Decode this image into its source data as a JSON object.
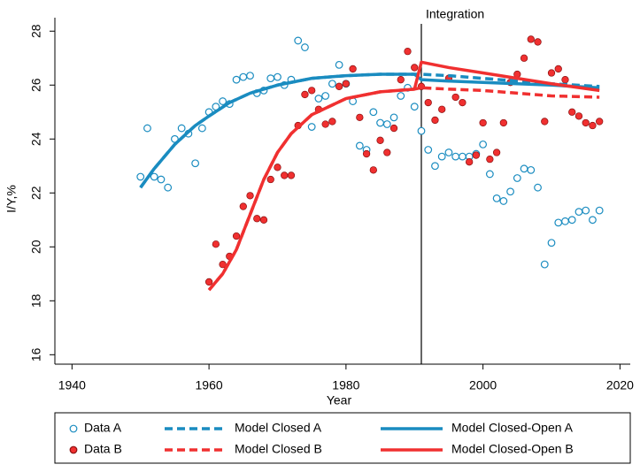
{
  "chart_data": {
    "type": "scatter-line",
    "xlabel": "Year",
    "ylabel": "I/Y,%",
    "xlim": [
      1937.5,
      2021.5
    ],
    "ylim": [
      15.65,
      28.5
    ],
    "xticks": [
      1940,
      1960,
      1980,
      2000,
      2020
    ],
    "yticks": [
      16,
      18,
      20,
      22,
      24,
      26,
      28
    ],
    "annotation": {
      "text": "Integration",
      "x": 1991
    },
    "series": [
      {
        "name": "Data A",
        "color": "#1a8cc0",
        "style": "hollow-circle",
        "x": [
          1950,
          1951,
          1952,
          1953,
          1954,
          1955,
          1956,
          1957,
          1958,
          1959,
          1960,
          1961,
          1962,
          1963,
          1964,
          1965,
          1966,
          1967,
          1968,
          1969,
          1970,
          1971,
          1972,
          1973,
          1974,
          1975,
          1976,
          1977,
          1978,
          1979,
          1980,
          1981,
          1982,
          1983,
          1984,
          1985,
          1986,
          1987,
          1988,
          1989,
          1990,
          1991,
          1992,
          1993,
          1994,
          1995,
          1996,
          1997,
          1998,
          1999,
          2000,
          2001,
          2002,
          2003,
          2004,
          2005,
          2006,
          2007,
          2008,
          2009,
          2010,
          2011,
          2012,
          2013,
          2014,
          2015,
          2016,
          2017
        ],
        "values": [
          22.6,
          24.4,
          22.6,
          22.5,
          22.2,
          24.0,
          24.4,
          24.2,
          23.1,
          24.4,
          25.0,
          25.2,
          25.4,
          25.3,
          26.2,
          26.3,
          26.35,
          25.7,
          25.8,
          26.25,
          26.3,
          26.0,
          26.2,
          27.65,
          27.4,
          24.45,
          25.5,
          25.6,
          26.05,
          26.75,
          26.05,
          25.4,
          23.75,
          23.6,
          25.0,
          24.6,
          24.55,
          24.8,
          25.6,
          25.9,
          25.2,
          24.3,
          23.6,
          23.0,
          23.35,
          23.5,
          23.35,
          23.35,
          23.35,
          23.45,
          23.8,
          22.7,
          21.8,
          21.7,
          22.05,
          22.55,
          22.9,
          22.85,
          22.2,
          19.35,
          20.15,
          20.9,
          20.95,
          21.0,
          21.3,
          21.35,
          21.0,
          21.35
        ]
      },
      {
        "name": "Data B",
        "color": "#f03030",
        "style": "filled-circle",
        "x": [
          1960,
          1961,
          1962,
          1963,
          1964,
          1965,
          1966,
          1967,
          1968,
          1969,
          1970,
          1971,
          1972,
          1973,
          1974,
          1975,
          1976,
          1977,
          1978,
          1979,
          1980,
          1981,
          1982,
          1983,
          1984,
          1985,
          1986,
          1987,
          1988,
          1989,
          1990,
          1991,
          1992,
          1993,
          1994,
          1995,
          1996,
          1997,
          1998,
          1999,
          2000,
          2001,
          2002,
          2003,
          2004,
          2005,
          2006,
          2007,
          2008,
          2009,
          2010,
          2011,
          2012,
          2013,
          2014,
          2015,
          2016,
          2017
        ],
        "values": [
          18.7,
          20.1,
          19.35,
          19.65,
          20.4,
          21.5,
          21.9,
          21.05,
          21.0,
          22.5,
          22.95,
          22.65,
          22.65,
          24.5,
          25.65,
          25.8,
          25.1,
          24.55,
          24.65,
          25.95,
          26.05,
          26.6,
          24.8,
          23.45,
          22.85,
          23.95,
          23.5,
          24.4,
          26.2,
          27.25,
          26.65,
          25.95,
          25.35,
          24.7,
          25.1,
          26.25,
          25.55,
          25.35,
          23.15,
          23.4,
          24.6,
          23.25,
          23.5,
          24.6,
          26.1,
          26.4,
          27.0,
          27.7,
          27.6,
          24.65,
          26.45,
          26.6,
          26.2,
          25.0,
          24.85,
          24.6,
          24.5,
          24.65
        ]
      },
      {
        "name": "Model Closed A",
        "color": "#1a8cc0",
        "style": "dashed",
        "x": [
          1950,
          1952,
          1955,
          1958,
          1960,
          1963,
          1966,
          1970,
          1975,
          1980,
          1985,
          1990,
          1991,
          1995,
          2000,
          2005,
          2010,
          2017
        ],
        "values": [
          22.2,
          22.9,
          23.8,
          24.5,
          24.85,
          25.35,
          25.7,
          26.0,
          26.25,
          26.35,
          26.4,
          26.4,
          26.4,
          26.35,
          26.25,
          26.15,
          26.05,
          25.95
        ]
      },
      {
        "name": "Model Closed B",
        "color": "#f03030",
        "style": "dashed",
        "x": [
          1960,
          1962,
          1964,
          1966,
          1968,
          1970,
          1972,
          1975,
          1980,
          1985,
          1990,
          1991,
          1995,
          2000,
          2005,
          2010,
          2017
        ],
        "values": [
          18.4,
          19.0,
          19.9,
          21.2,
          22.5,
          23.5,
          24.2,
          24.9,
          25.5,
          25.75,
          25.85,
          25.9,
          25.85,
          25.8,
          25.7,
          25.6,
          25.55
        ]
      },
      {
        "name": "Model Closed-Open A",
        "color": "#1a8cc0",
        "style": "solid",
        "x": [
          1950,
          1952,
          1955,
          1958,
          1960,
          1963,
          1966,
          1970,
          1975,
          1980,
          1985,
          1990,
          1991,
          1995,
          2000,
          2005,
          2010,
          2017
        ],
        "values": [
          22.2,
          22.9,
          23.8,
          24.5,
          24.85,
          25.35,
          25.7,
          26.0,
          26.25,
          26.35,
          26.4,
          26.4,
          26.2,
          26.15,
          26.1,
          26.05,
          26.0,
          25.9
        ]
      },
      {
        "name": "Model Closed-Open B",
        "color": "#f03030",
        "style": "solid",
        "x": [
          1960,
          1962,
          1964,
          1966,
          1968,
          1970,
          1972,
          1975,
          1980,
          1985,
          1990,
          1991,
          1995,
          2000,
          2005,
          2010,
          2017
        ],
        "values": [
          18.4,
          19.0,
          19.9,
          21.2,
          22.5,
          23.5,
          24.2,
          24.9,
          25.5,
          25.75,
          25.85,
          26.85,
          26.65,
          26.45,
          26.25,
          26.05,
          25.8
        ]
      }
    ]
  }
}
